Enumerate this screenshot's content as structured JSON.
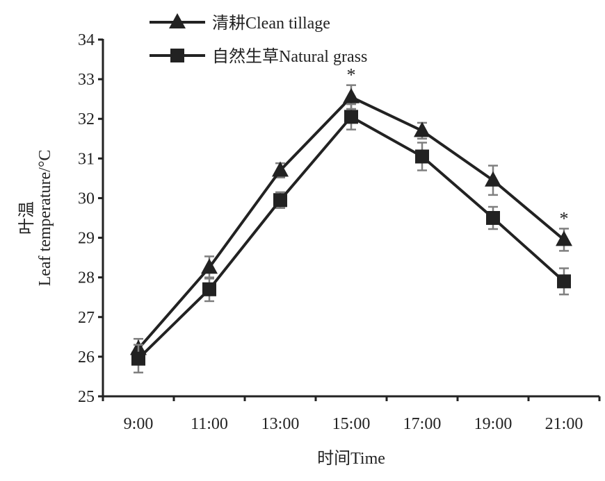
{
  "chart_data": {
    "type": "line",
    "title": "",
    "xlabel": "时间Time",
    "ylabel_cn": "叶温",
    "ylabel": "Leaf temperature/°C",
    "categories": [
      "9:00",
      "11:00",
      "13:00",
      "15:00",
      "17:00",
      "19:00",
      "21:00"
    ],
    "ylim": [
      25,
      34
    ],
    "yticks": [
      "25",
      "26",
      "27",
      "28",
      "29",
      "30",
      "31",
      "32",
      "33",
      "34"
    ],
    "grid": false,
    "legend_position": "top-left",
    "series": [
      {
        "name": "清耕Clean tillage",
        "marker": "triangle",
        "values": [
          26.2,
          28.25,
          30.7,
          32.55,
          31.7,
          30.45,
          28.95
        ],
        "errors": [
          0.25,
          0.28,
          0.18,
          0.3,
          0.2,
          0.37,
          0.28
        ]
      },
      {
        "name": "自然生草Natural grass",
        "marker": "square",
        "values": [
          25.95,
          27.7,
          29.95,
          32.05,
          31.05,
          29.5,
          27.9
        ],
        "errors": [
          0.35,
          0.3,
          0.2,
          0.32,
          0.35,
          0.28,
          0.33
        ]
      }
    ],
    "annotations": [
      {
        "category": "15:00",
        "text": "*"
      },
      {
        "category": "21:00",
        "text": "*"
      }
    ],
    "colors": {
      "line": "#222222",
      "error": "#7f7f7f"
    }
  }
}
